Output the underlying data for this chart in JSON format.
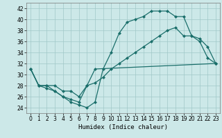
{
  "xlabel": "Humidex (Indice chaleur)",
  "xlim": [
    -0.5,
    23.5
  ],
  "ylim": [
    23,
    43
  ],
  "yticks": [
    24,
    26,
    28,
    30,
    32,
    34,
    36,
    38,
    40,
    42
  ],
  "xticks": [
    0,
    1,
    2,
    3,
    4,
    5,
    6,
    7,
    8,
    9,
    10,
    11,
    12,
    13,
    14,
    15,
    16,
    17,
    18,
    19,
    20,
    21,
    22,
    23
  ],
  "bg_color": "#cce8e8",
  "grid_color": "#a0c8c8",
  "line_color": "#1a6e6a",
  "line1_x": [
    0,
    1,
    2,
    3,
    4,
    5,
    6,
    7,
    8,
    9,
    10,
    11,
    12,
    13,
    14,
    15,
    16,
    17,
    18,
    19,
    20,
    21,
    22,
    23
  ],
  "line1_y": [
    31,
    28,
    28,
    27,
    26,
    25,
    24.5,
    24,
    25,
    31,
    34,
    37.5,
    39.5,
    40,
    40.5,
    41.5,
    41.5,
    41.5,
    40.5,
    40.5,
    37,
    36,
    33,
    32
  ],
  "line2_x": [
    0,
    1,
    2,
    3,
    4,
    5,
    6,
    7,
    8,
    23
  ],
  "line2_y": [
    31,
    28,
    27.5,
    27,
    26,
    25.5,
    25,
    28,
    31,
    32
  ],
  "line3_x": [
    0,
    1,
    2,
    3,
    4,
    5,
    6,
    7,
    8,
    9,
    10,
    11,
    12,
    13,
    14,
    15,
    16,
    17,
    18,
    19,
    20,
    21,
    22,
    23
  ],
  "line3_y": [
    31,
    28,
    28,
    28,
    27,
    27,
    26,
    28,
    28.5,
    29.5,
    31,
    32,
    33,
    34,
    35,
    36,
    37,
    38,
    38.5,
    37,
    37,
    36.5,
    35,
    32
  ]
}
